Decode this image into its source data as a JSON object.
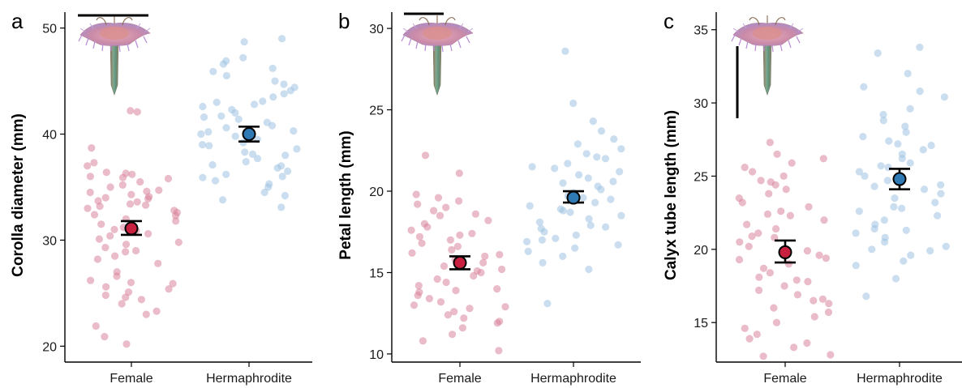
{
  "colors": {
    "female_point": "#d8849a",
    "herm_point": "#9ec3e2",
    "female_mean": "#c8203f",
    "herm_mean": "#2f79b5",
    "axis": "#000000"
  },
  "icons": [
    "flower-illustration-icon"
  ],
  "chart_data": [
    {
      "panel": "a",
      "type": "scatter",
      "ylabel": "Corolla diameter (mm)",
      "xlabel": "",
      "categories": [
        "Female",
        "Hermaphrodite"
      ],
      "ylim": [
        18.5,
        51.5
      ],
      "yticks": [
        20,
        30,
        40,
        50
      ],
      "scale_bar": "horizontal",
      "grid": false,
      "series": [
        {
          "category": "Female",
          "values": [
            42.2,
            42.1,
            37.3,
            36.4,
            36.3,
            36.2,
            36.0,
            35.8,
            35.5,
            35.2,
            35.0,
            34.7,
            34.6,
            34.5,
            34.3,
            34.0,
            33.9,
            33.7,
            33.6,
            33.4,
            33.2,
            33.0,
            32.8,
            32.6,
            32.4,
            32.0,
            31.8,
            31.5,
            31.2,
            30.9,
            30.6,
            30.4,
            30.1,
            29.8,
            29.6,
            29.3,
            29.0,
            28.5,
            28.2,
            27.8,
            27.0,
            26.6,
            26.2,
            25.9,
            25.6,
            25.4,
            25.1,
            24.8,
            24.4,
            24.0,
            23.3,
            23.0,
            21.9,
            20.9,
            20.2,
            38.7,
            37.0,
            35.9,
            34.1,
            33.3,
            32.3,
            31.0,
            28.9,
            26.0,
            24.6
          ],
          "mean": 31.1,
          "error": [
            30.5,
            31.8
          ]
        },
        {
          "category": "Hermaphrodite",
          "values": [
            49.0,
            48.7,
            47.2,
            46.9,
            46.6,
            46.2,
            45.9,
            45.5,
            45.0,
            44.7,
            44.4,
            44.1,
            43.8,
            43.5,
            43.1,
            42.8,
            42.6,
            42.3,
            42.0,
            41.7,
            41.4,
            41.1,
            40.8,
            40.6,
            40.3,
            40.0,
            39.8,
            39.5,
            39.2,
            38.9,
            38.6,
            38.3,
            38.0,
            37.7,
            37.4,
            37.1,
            36.8,
            36.5,
            36.2,
            35.9,
            35.6,
            35.3,
            35.0,
            34.5,
            34.2,
            33.8,
            33.1,
            43.0,
            41.6,
            40.2,
            39.0,
            38.1,
            37.0,
            36.0
          ],
          "mean": 40.0,
          "error": [
            39.3,
            40.7
          ]
        }
      ]
    },
    {
      "panel": "b",
      "type": "scatter",
      "ylabel": "Petal length (mm)",
      "xlabel": "",
      "categories": [
        "Female",
        "Hermaphrodite"
      ],
      "ylim": [
        9.5,
        31.0
      ],
      "yticks": [
        10,
        15,
        20,
        25,
        30
      ],
      "scale_bar": "horizontal",
      "grid": false,
      "series": [
        {
          "category": "Female",
          "values": [
            22.2,
            21.1,
            19.8,
            19.6,
            19.4,
            19.2,
            19.0,
            18.8,
            18.5,
            18.2,
            18.0,
            17.8,
            17.6,
            17.4,
            17.2,
            17.0,
            16.8,
            16.6,
            16.4,
            16.2,
            16.0,
            15.8,
            15.6,
            15.4,
            15.2,
            15.0,
            14.8,
            14.6,
            14.4,
            14.2,
            14.0,
            13.8,
            13.6,
            13.4,
            13.2,
            13.0,
            12.8,
            12.6,
            12.4,
            12.2,
            12.0,
            11.6,
            11.2,
            10.8,
            10.2,
            18.6,
            17.3,
            16.1,
            15.1,
            13.9,
            12.9,
            11.9
          ],
          "mean": 15.6,
          "error": [
            15.2,
            16.0
          ]
        },
        {
          "category": "Hermaphrodite",
          "values": [
            28.6,
            25.4,
            24.3,
            23.7,
            23.2,
            22.9,
            22.6,
            22.3,
            22.0,
            21.7,
            21.5,
            21.2,
            21.0,
            20.8,
            20.5,
            20.3,
            20.1,
            19.9,
            19.7,
            19.5,
            19.3,
            19.1,
            18.9,
            18.7,
            18.5,
            18.3,
            18.1,
            17.9,
            17.7,
            17.5,
            17.3,
            17.1,
            16.9,
            16.7,
            16.5,
            16.3,
            16.0,
            15.6,
            15.2,
            13.1,
            22.1,
            21.4,
            20.6,
            19.6,
            18.8,
            17.8,
            17.0
          ],
          "mean": 19.6,
          "error": [
            19.3,
            20.0
          ]
        }
      ]
    },
    {
      "panel": "c",
      "type": "scatter",
      "ylabel": "Calyx tube length (mm)",
      "xlabel": "",
      "categories": [
        "Female",
        "Hermaphrodite"
      ],
      "ylim": [
        12.3,
        36.2
      ],
      "yticks": [
        15,
        20,
        25,
        30,
        35
      ],
      "scale_bar": "vertical",
      "grid": false,
      "series": [
        {
          "category": "Female",
          "values": [
            27.3,
            26.5,
            26.2,
            25.9,
            25.6,
            25.3,
            25.0,
            24.7,
            24.4,
            24.1,
            23.8,
            23.5,
            23.2,
            22.9,
            22.6,
            22.3,
            22.0,
            21.7,
            21.4,
            21.1,
            20.8,
            20.5,
            20.2,
            19.9,
            19.6,
            19.3,
            19.0,
            18.7,
            18.4,
            18.1,
            17.8,
            17.5,
            17.2,
            16.9,
            16.6,
            16.3,
            16.0,
            15.7,
            15.4,
            15.0,
            14.6,
            14.2,
            13.9,
            13.6,
            13.3,
            12.8,
            12.7,
            24.6,
            22.4,
            20.9,
            19.4,
            17.9,
            16.5
          ],
          "mean": 19.8,
          "error": [
            19.1,
            20.6
          ]
        },
        {
          "category": "Hermaphrodite",
          "values": [
            33.8,
            33.4,
            32.0,
            31.1,
            30.8,
            30.4,
            29.6,
            29.2,
            28.8,
            28.4,
            28.0,
            27.7,
            27.4,
            27.1,
            26.8,
            26.5,
            26.2,
            25.9,
            25.6,
            25.3,
            25.0,
            24.7,
            24.4,
            24.1,
            23.8,
            23.5,
            23.2,
            22.9,
            22.6,
            22.3,
            22.0,
            21.7,
            21.4,
            21.1,
            20.8,
            20.5,
            20.2,
            19.9,
            19.6,
            19.2,
            18.9,
            18.0,
            16.8,
            27.2,
            25.7,
            24.3,
            22.8,
            21.3,
            20.0
          ],
          "mean": 24.8,
          "error": [
            24.1,
            25.5
          ]
        }
      ]
    }
  ]
}
